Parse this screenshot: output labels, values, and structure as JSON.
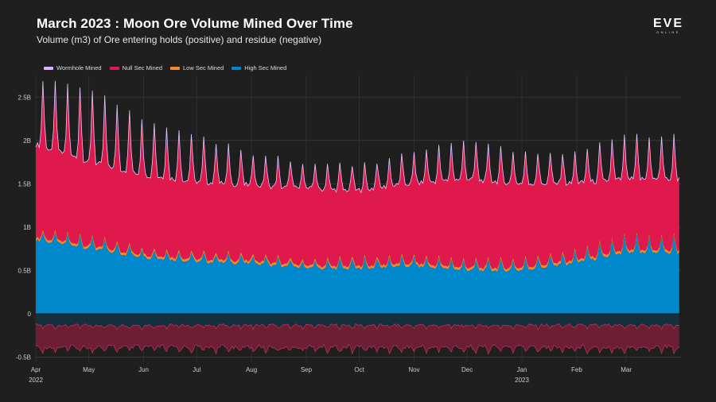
{
  "header": {
    "title": "March 2023 : Moon Ore Volume Mined Over Time",
    "subtitle": "Volume (m3) of Ore entering holds (positive) and residue (negative)"
  },
  "logo": {
    "main": "EVE",
    "sub": "ONLINE"
  },
  "chart_data": {
    "type": "area",
    "title": "March 2023 : Moon Ore Volume Mined Over Time",
    "subtitle": "Volume (m3) of Ore entering holds (positive) and residue (negative)",
    "xlabel": "",
    "ylabel": "",
    "ylim": [
      -0.55,
      2.75
    ],
    "y_unit": "B m3",
    "yticks": [
      -0.5,
      0,
      0.5,
      1,
      1.5,
      2,
      2.5
    ],
    "ytick_labels": [
      "-0.5B",
      "0",
      "0.5B",
      "1B",
      "1.5B",
      "2B",
      "2.5B"
    ],
    "xticks": [
      {
        "label": "Apr",
        "sub": "2022"
      },
      {
        "label": "May",
        "sub": ""
      },
      {
        "label": "Jun",
        "sub": ""
      },
      {
        "label": "Jul",
        "sub": ""
      },
      {
        "label": "Aug",
        "sub": ""
      },
      {
        "label": "Sep",
        "sub": ""
      },
      {
        "label": "Oct",
        "sub": ""
      },
      {
        "label": "Nov",
        "sub": ""
      },
      {
        "label": "Dec",
        "sub": ""
      },
      {
        "label": "Jan",
        "sub": "2023"
      },
      {
        "label": "Feb",
        "sub": ""
      },
      {
        "label": "Mar",
        "sub": ""
      }
    ],
    "x_days_total": 365,
    "x_days_per_month": [
      0,
      30,
      61,
      91,
      122,
      153,
      183,
      214,
      244,
      275,
      306,
      334
    ],
    "grid": true,
    "legend_position": "top-left",
    "series": [
      {
        "name": "Wormhole Mined",
        "color": "#d9b3ff",
        "typical_increment": 0.005
      },
      {
        "name": "Null Sec Mined",
        "color": "#e0194c",
        "stacked_total_trend": [
          1.95,
          1.75,
          1.6,
          1.52,
          1.48,
          1.44,
          1.42,
          1.5,
          1.55,
          1.5,
          1.5,
          1.55
        ],
        "weekly_peaks_approx": [
          2.7,
          2.6,
          2.25,
          2.05,
          1.85,
          1.75,
          1.7,
          1.85,
          2.0,
          1.85,
          1.85,
          2.05
        ]
      },
      {
        "name": "Low Sec Mined",
        "color": "#f08a2c",
        "typical_increment": 0.03
      },
      {
        "name": "High Sec Mined",
        "color": "#0088cc",
        "trend": [
          0.85,
          0.75,
          0.65,
          0.6,
          0.58,
          0.52,
          0.52,
          0.55,
          0.5,
          0.5,
          0.58,
          0.7
        ],
        "weekly_peaks_approx": [
          0.95,
          0.9,
          0.75,
          0.7,
          0.68,
          0.62,
          0.64,
          0.66,
          0.62,
          0.62,
          0.72,
          0.9
        ]
      }
    ],
    "residue": {
      "name": "Residue",
      "color": "#7a2038",
      "trend_low": -0.38,
      "trend_high": -0.13,
      "peak_low": -0.5
    }
  },
  "legend": [
    {
      "label": "Wormhole Mined",
      "color": "#d9b3ff"
    },
    {
      "label": "Null Sec Mined",
      "color": "#e0194c"
    },
    {
      "label": "Low Sec Mined",
      "color": "#f08a2c"
    },
    {
      "label": "High Sec Mined",
      "color": "#0088cc"
    }
  ]
}
